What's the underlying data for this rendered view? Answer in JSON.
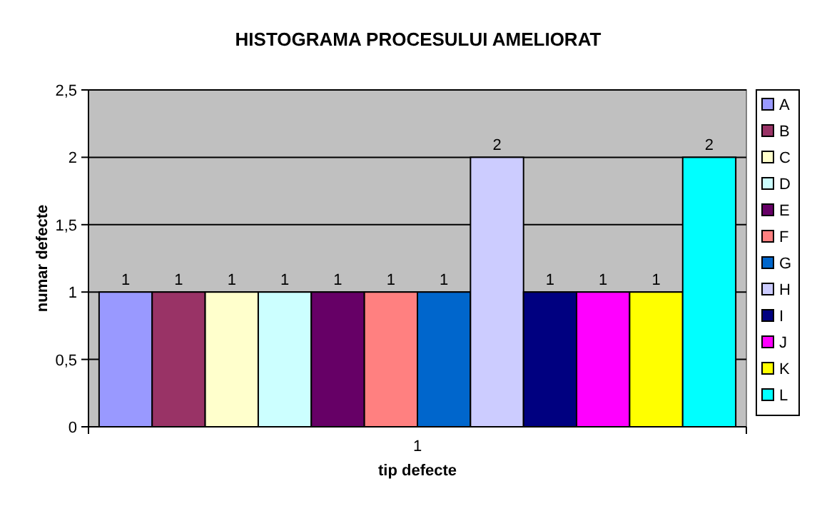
{
  "chart_data": {
    "type": "bar",
    "title": "HISTOGRAMA PROCESULUI AMELIORAT",
    "xlabel": "tip defecte",
    "ylabel": "numar defecte",
    "categories": [
      null,
      null,
      null,
      null,
      null,
      null,
      null,
      null,
      null,
      null,
      null,
      null
    ],
    "series": [
      {
        "name": "A",
        "color": "#9999ff",
        "values": [
          1,
          null,
          null,
          null,
          null,
          null,
          null,
          null,
          null,
          null,
          null,
          null
        ]
      },
      {
        "name": "B",
        "color": "#993366",
        "values": [
          null,
          1,
          null,
          null,
          null,
          null,
          null,
          null,
          null,
          null,
          null,
          null
        ]
      },
      {
        "name": "C",
        "color": "#ffffcc",
        "values": [
          null,
          null,
          1,
          null,
          null,
          null,
          null,
          null,
          null,
          null,
          null,
          null
        ]
      },
      {
        "name": "D",
        "color": "#ccffff",
        "values": [
          null,
          null,
          null,
          1,
          null,
          null,
          null,
          null,
          null,
          null,
          null,
          null
        ]
      },
      {
        "name": "E",
        "color": "#660066",
        "values": [
          null,
          null,
          null,
          null,
          1,
          null,
          null,
          null,
          null,
          null,
          null,
          null
        ]
      },
      {
        "name": "F",
        "color": "#ff8080",
        "values": [
          null,
          null,
          null,
          null,
          null,
          1,
          null,
          null,
          null,
          null,
          null,
          null
        ]
      },
      {
        "name": "G",
        "color": "#0066cc",
        "values": [
          null,
          null,
          null,
          null,
          null,
          null,
          1,
          null,
          null,
          null,
          null,
          null
        ]
      },
      {
        "name": "H",
        "color": "#ccccff",
        "values": [
          null,
          null,
          null,
          null,
          null,
          null,
          null,
          2,
          null,
          null,
          null,
          null
        ]
      },
      {
        "name": "I",
        "color": "#000080",
        "values": [
          null,
          null,
          null,
          null,
          null,
          null,
          null,
          null,
          1,
          null,
          null,
          null
        ]
      },
      {
        "name": "J",
        "color": "#ff00ff",
        "values": [
          null,
          null,
          null,
          null,
          null,
          null,
          null,
          null,
          null,
          1,
          null,
          null
        ]
      },
      {
        "name": "K",
        "color": "#ffff00",
        "values": [
          null,
          null,
          null,
          null,
          null,
          null,
          null,
          null,
          null,
          null,
          1,
          null
        ]
      },
      {
        "name": "L",
        "color": "#00ffff",
        "values": [
          null,
          null,
          null,
          null,
          null,
          null,
          null,
          null,
          null,
          null,
          null,
          2
        ]
      }
    ],
    "annotations": [
      "1"
    ],
    "ylim": [
      0,
      2.5
    ],
    "yticks": [
      0,
      {
        "value": 0.5,
        "label": "0,5"
      },
      1,
      {
        "value": 1.5,
        "label": "1,5"
      },
      2,
      {
        "value": 2.5,
        "label": "2,5"
      }
    ],
    "grid": "y",
    "legend": "right",
    "data_labels": true
  }
}
